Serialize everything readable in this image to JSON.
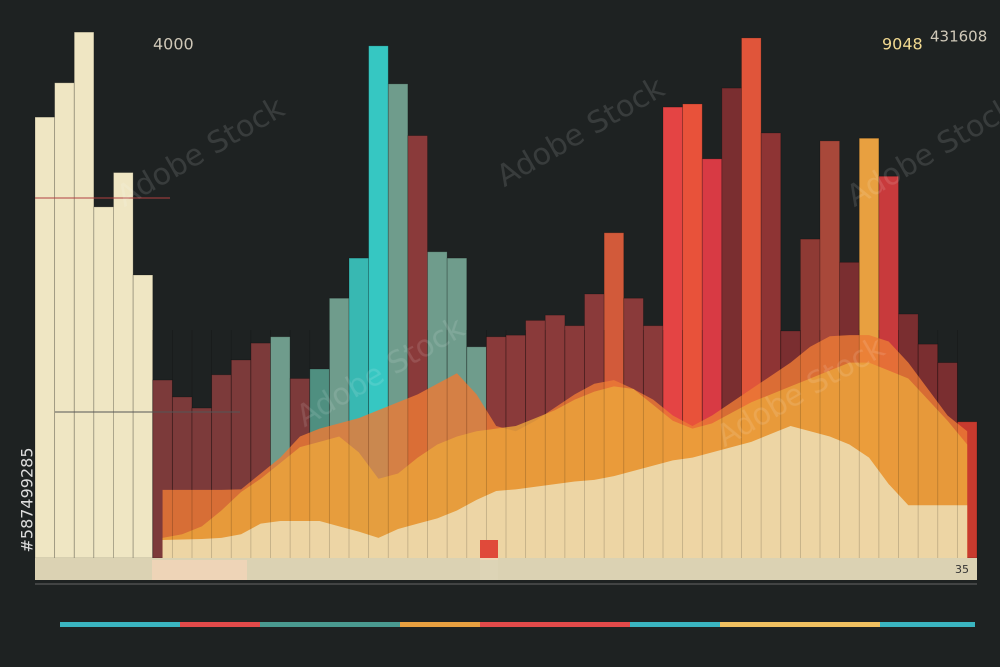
{
  "chart_data": {
    "type": "bar",
    "annotations": [
      "4000",
      "9048",
      "431608",
      "35"
    ],
    "categories": [
      null,
      null,
      null,
      null,
      null,
      null,
      null,
      null,
      null,
      null,
      null,
      null,
      null,
      null,
      null,
      null,
      null,
      null,
      null,
      null,
      null,
      null,
      null,
      null,
      null,
      null,
      null,
      null,
      null,
      null,
      null,
      null,
      null,
      null,
      null,
      null,
      null,
      null,
      null,
      null,
      null,
      null,
      null,
      null,
      null,
      null,
      null,
      null
    ],
    "values": [
      83.5,
      90,
      99.6,
      66.5,
      73,
      53.6,
      33.7,
      30.5,
      28.4,
      34.7,
      37.5,
      40.7,
      41.9,
      34,
      35.8,
      49.2,
      56.8,
      97,
      89.8,
      80,
      58,
      56.8,
      40,
      41.9,
      42.2,
      45,
      46,
      44,
      50,
      61.6,
      49.2,
      44,
      85.4,
      86,
      75.6,
      89,
      98.5,
      80.5,
      43,
      60.4,
      79,
      56,
      79.5,
      72.3,
      46.2,
      40.5,
      37,
      25.8
    ],
    "colors": [
      "#efe6c3",
      "#efe6c3",
      "#efe6c3",
      "#efe6c3",
      "#efe6c3",
      "#efe6c3",
      "#7c3a3a",
      "#7c3a3a",
      "#7c3a3a",
      "#7c3a3a",
      "#7c3a3a",
      "#7c3a3a",
      "#6f9c8c",
      "#7c3a3a",
      "#4f8f80",
      "#6f9c8c",
      "#38b8b2",
      "#36c7c2",
      "#6f9c8c",
      "#8a3a3a",
      "#6f9c8c",
      "#6f9c8c",
      "#6f9c8c",
      "#8a3a3a",
      "#8a3a3a",
      "#8a3a3a",
      "#8a3a3a",
      "#8a3a3a",
      "#8a3a3a",
      "#d25a3a",
      "#8a3a3a",
      "#8a3a3a",
      "#e44444",
      "#e8523a",
      "#d83a44",
      "#7a2e30",
      "#e0553a",
      "#8e3434",
      "#7a2e30",
      "#8e3a34",
      "#a8483a",
      "#7a2e30",
      "#e8a040",
      "#c83a3c",
      "#7a2e30",
      "#7a2e30",
      "#7a2e30",
      "#c83a2e"
    ],
    "areas": [
      {
        "color": "#ec7a36",
        "values": [
          null,
          null,
          null,
          null,
          null,
          null,
          12.9,
          12.9,
          12.9,
          12.9,
          13,
          16,
          19,
          23,
          24.5,
          25.5,
          26.5,
          28,
          29.5,
          31,
          33,
          35,
          31,
          25,
          24,
          26,
          28.5,
          31,
          33,
          33.7,
          32,
          30,
          27,
          25,
          27,
          29.5,
          32,
          34.5,
          37,
          40,
          42,
          42.2,
          42.2,
          41,
          37,
          32,
          27,
          24
        ]
      },
      {
        "color": "#eaa43c",
        "values": [
          null,
          null,
          null,
          null,
          null,
          null,
          3.8,
          4.5,
          6,
          9,
          12.5,
          15,
          18,
          21,
          22,
          23,
          20,
          15,
          16,
          19,
          21.5,
          23,
          24,
          24.5,
          25,
          26.5,
          28,
          30,
          31.5,
          32.5,
          32,
          29,
          26,
          24.5,
          25.5,
          27.5,
          29.5,
          31,
          32.5,
          34,
          35.5,
          37,
          37,
          35.5,
          34,
          30,
          26,
          21.5
        ]
      },
      {
        "color": "#eee2bc",
        "values": [
          null,
          null,
          null,
          null,
          null,
          null,
          3.4,
          3.5,
          3.6,
          3.8,
          4.5,
          6.5,
          7,
          7,
          7,
          6,
          5,
          3.8,
          5.5,
          6.5,
          7.5,
          9,
          11,
          12.7,
          13,
          13.5,
          14,
          14.5,
          14.8,
          15.5,
          16.5,
          17.5,
          18.5,
          19,
          20,
          21,
          22,
          23.5,
          25,
          24,
          23,
          21.5,
          19,
          14,
          10,
          10,
          10,
          10
        ]
      }
    ],
    "ylim": [
      0,
      100
    ]
  },
  "watermark": "Adobe Stock",
  "stock_id": "#587499285"
}
